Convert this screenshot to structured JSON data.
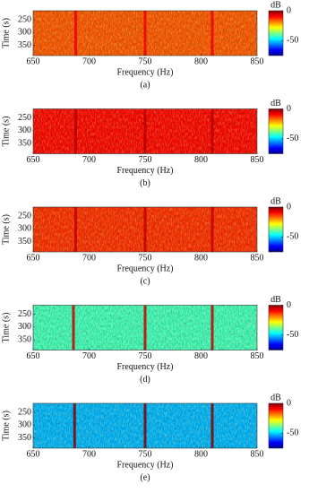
{
  "chart_data": [
    {
      "type": "heatmap",
      "caption": "(a)",
      "xlabel": "Frequency (Hz)",
      "ylabel": "Time (s)",
      "xlim": [
        650,
        850
      ],
      "ylim": [
        215,
        390
      ],
      "xticks": [
        650,
        700,
        750,
        800,
        850
      ],
      "yticks": [
        250,
        300,
        350
      ],
      "background_level": -16,
      "tonal_lines": [
        688,
        750,
        810
      ],
      "line_level": -8,
      "colorbar": {
        "label": "dB",
        "clim": [
          -75,
          0
        ],
        "ticks": [
          0,
          -50
        ]
      }
    },
    {
      "type": "heatmap",
      "caption": "(b)",
      "xlabel": "Frequency (Hz)",
      "ylabel": "Time (s)",
      "xlim": [
        650,
        850
      ],
      "ylim": [
        215,
        390
      ],
      "xticks": [
        650,
        700,
        750,
        800,
        850
      ],
      "yticks": [
        250,
        300,
        350
      ],
      "background_level": -10,
      "tonal_lines": [
        688,
        750,
        810
      ],
      "line_level": -4,
      "colorbar": {
        "label": "dB",
        "clim": [
          -75,
          0
        ],
        "ticks": [
          0,
          -50
        ]
      }
    },
    {
      "type": "heatmap",
      "caption": "(c)",
      "xlabel": "Frequency (Hz)",
      "ylabel": "Time (s)",
      "xlim": [
        650,
        850
      ],
      "ylim": [
        215,
        390
      ],
      "xticks": [
        650,
        700,
        750,
        800,
        850
      ],
      "yticks": [
        250,
        300,
        350
      ],
      "background_level": -13,
      "tonal_lines": [
        688,
        750,
        810
      ],
      "line_level": -5,
      "colorbar": {
        "label": "dB",
        "clim": [
          -75,
          0
        ],
        "ticks": [
          0,
          -50
        ]
      }
    },
    {
      "type": "heatmap",
      "caption": "(d)",
      "xlabel": "Frequency (Hz)",
      "ylabel": "Time (s)",
      "xlim": [
        650,
        850
      ],
      "ylim": [
        215,
        390
      ],
      "xticks": [
        650,
        700,
        750,
        800,
        850
      ],
      "yticks": [
        250,
        300,
        350
      ],
      "background_level": -42,
      "tonal_lines": [
        686,
        750,
        810
      ],
      "line_level": -5,
      "colorbar": {
        "label": "dB",
        "clim": [
          -75,
          0
        ],
        "ticks": [
          0,
          -50
        ]
      }
    },
    {
      "type": "heatmap",
      "caption": "(e)",
      "xlabel": "Frequency (Hz)",
      "ylabel": "Time (s)",
      "xlim": [
        650,
        850
      ],
      "ylim": [
        215,
        390
      ],
      "xticks": [
        650,
        700,
        750,
        800,
        850
      ],
      "yticks": [
        250,
        300,
        350
      ],
      "background_level": -52,
      "tonal_lines": [
        687,
        750,
        810
      ],
      "line_level": 0,
      "colorbar": {
        "label": "dB",
        "clim": [
          -75,
          0
        ],
        "ticks": [
          0,
          -50
        ]
      }
    }
  ]
}
